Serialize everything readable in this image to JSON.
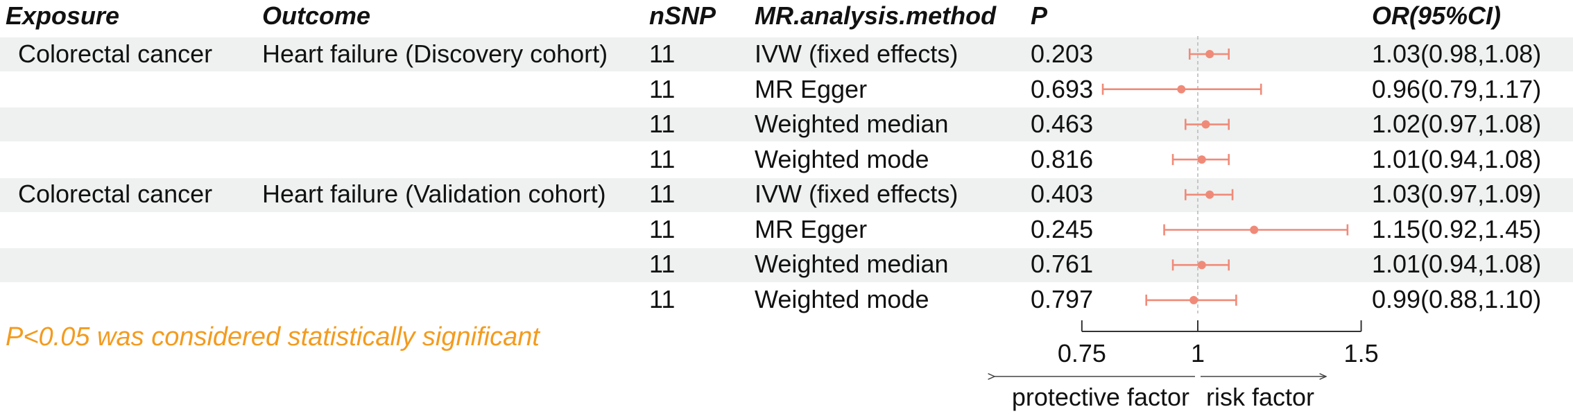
{
  "headers": {
    "exposure": "Exposure",
    "outcome": "Outcome",
    "nsnp": "nSNP",
    "method": "MR.analysis.method",
    "p": "P",
    "or": "OR(95%CI)"
  },
  "rows": [
    {
      "exposure": "Colorectal cancer",
      "outcome": "Heart failure (Discovery cohort)",
      "nsnp": "11",
      "method": "IVW (fixed effects)",
      "p": "0.203",
      "or_text": "1.03(0.98,1.08)"
    },
    {
      "exposure": "",
      "outcome": "",
      "nsnp": "11",
      "method": "MR Egger",
      "p": "0.693",
      "or_text": "0.96(0.79,1.17)"
    },
    {
      "exposure": "",
      "outcome": "",
      "nsnp": "11",
      "method": "Weighted median",
      "p": "0.463",
      "or_text": "1.02(0.97,1.08)"
    },
    {
      "exposure": "",
      "outcome": "",
      "nsnp": "11",
      "method": "Weighted mode",
      "p": "0.816",
      "or_text": "1.01(0.94,1.08)"
    },
    {
      "exposure": "Colorectal cancer",
      "outcome": "Heart failure (Validation cohort)",
      "nsnp": "11",
      "method": "IVW (fixed effects)",
      "p": "0.403",
      "or_text": "1.03(0.97,1.09)"
    },
    {
      "exposure": "",
      "outcome": "",
      "nsnp": "11",
      "method": "MR Egger",
      "p": "0.245",
      "or_text": "1.15(0.92,1.45)"
    },
    {
      "exposure": "",
      "outcome": "",
      "nsnp": "11",
      "method": "Weighted median",
      "p": "0.761",
      "or_text": "1.01(0.94,1.08)"
    },
    {
      "exposure": "",
      "outcome": "",
      "nsnp": "11",
      "method": "Weighted mode",
      "p": "0.797",
      "or_text": "0.99(0.88,1.10)"
    }
  ],
  "footnote": "P<0.05 was considered statistically significant",
  "colors": {
    "point": "#f08a78",
    "band": "#eef1f0",
    "note": "#f39b1f",
    "reference_line": "#bbbbbb"
  },
  "chart_data": {
    "type": "forest",
    "x_scale": "log",
    "xlim": [
      0.75,
      1.5
    ],
    "reference_value": 1,
    "ticks": [
      {
        "value": 0.75,
        "label": "0.75"
      },
      {
        "value": 1,
        "label": "1"
      },
      {
        "value": 1.5,
        "label": "1.5"
      }
    ],
    "left_label": "protective factor",
    "right_label": "risk factor",
    "estimates": [
      {
        "or": 1.03,
        "lower": 0.98,
        "upper": 1.08
      },
      {
        "or": 0.96,
        "lower": 0.79,
        "upper": 1.17
      },
      {
        "or": 1.02,
        "lower": 0.97,
        "upper": 1.08
      },
      {
        "or": 1.01,
        "lower": 0.94,
        "upper": 1.08
      },
      {
        "or": 1.03,
        "lower": 0.97,
        "upper": 1.09
      },
      {
        "or": 1.15,
        "lower": 0.92,
        "upper": 1.45
      },
      {
        "or": 1.01,
        "lower": 0.94,
        "upper": 1.08
      },
      {
        "or": 0.99,
        "lower": 0.88,
        "upper": 1.1
      }
    ]
  }
}
